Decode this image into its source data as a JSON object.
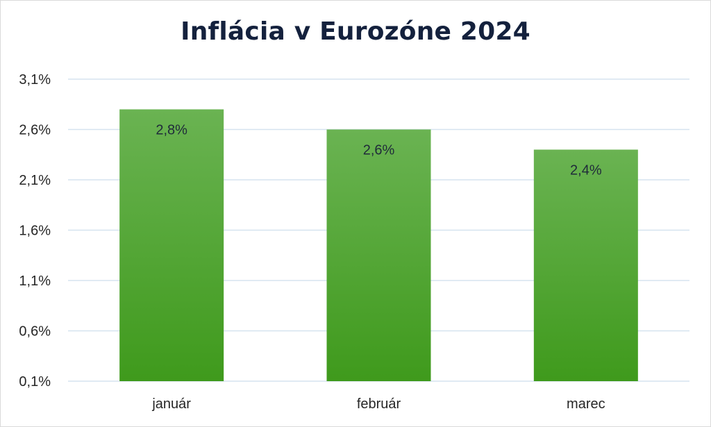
{
  "chart_data": {
    "type": "bar",
    "title": "Inflácia v Eurozóne 2024",
    "categories": [
      "január",
      "február",
      "marec"
    ],
    "values": [
      2.8,
      2.6,
      2.4
    ],
    "data_labels": [
      "2,8%",
      "2,6%",
      "2,4%"
    ],
    "xlabel": "",
    "ylabel": "",
    "ylim": [
      0.1,
      3.1
    ],
    "yticks": [
      0.1,
      0.6,
      1.1,
      1.6,
      2.1,
      2.6,
      3.1
    ],
    "ytick_labels": [
      "0,1%",
      "0,6%",
      "1,1%",
      "1,6%",
      "2,1%",
      "2,6%",
      "3,1%"
    ],
    "grid": true,
    "legend": "none",
    "colors": {
      "bar_top": "#6ab352",
      "bar_bottom": "#3f9a1c",
      "grid": "#d6e3ef",
      "title": "#14213d"
    }
  }
}
